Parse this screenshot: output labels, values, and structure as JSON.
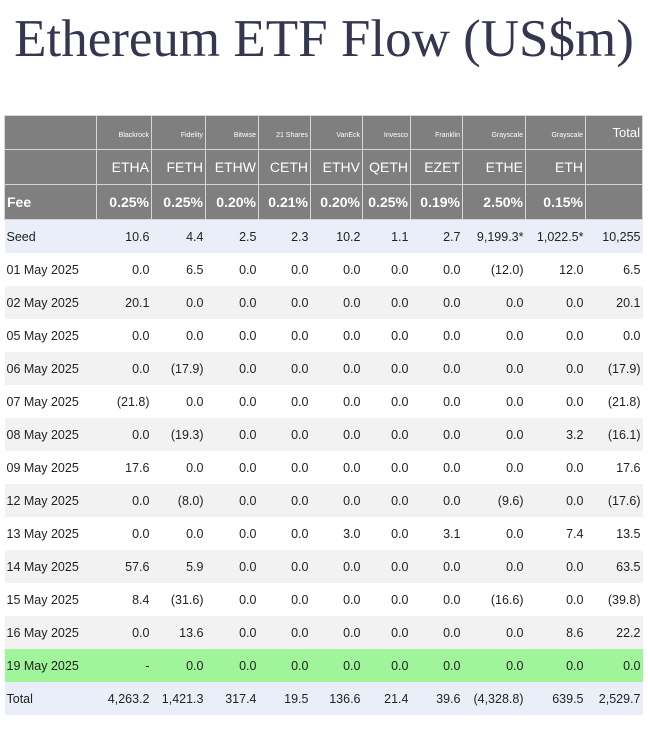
{
  "title": "Ethereum ETF Flow (US$m)",
  "chart_data": {
    "type": "table",
    "issuers": [
      "Blackrock",
      "Fidelity",
      "Bitwise",
      "21 Shares",
      "VanEck",
      "Invesco",
      "Franklin",
      "Grayscale",
      "Grayscale"
    ],
    "tickers": [
      "ETHA",
      "FETH",
      "ETHW",
      "CETH",
      "ETHV",
      "QETH",
      "EZET",
      "ETHE",
      "ETH"
    ],
    "total_header": "Total",
    "fee_label": "Fee",
    "fees": [
      "0.25%",
      "0.25%",
      "0.20%",
      "0.21%",
      "0.20%",
      "0.25%",
      "0.19%",
      "2.50%",
      "0.15%"
    ],
    "rows": [
      {
        "label": "Seed",
        "values": [
          "10.6",
          "4.4",
          "2.5",
          "2.3",
          "10.2",
          "1.1",
          "2.7",
          "9,199.3*",
          "1,022.5*"
        ],
        "total": "10,255"
      },
      {
        "label": "01 May 2025",
        "values": [
          "0.0",
          "6.5",
          "0.0",
          "0.0",
          "0.0",
          "0.0",
          "0.0",
          "(12.0)",
          "12.0"
        ],
        "total": "6.5"
      },
      {
        "label": "02 May 2025",
        "values": [
          "20.1",
          "0.0",
          "0.0",
          "0.0",
          "0.0",
          "0.0",
          "0.0",
          "0.0",
          "0.0"
        ],
        "total": "20.1"
      },
      {
        "label": "05 May 2025",
        "values": [
          "0.0",
          "0.0",
          "0.0",
          "0.0",
          "0.0",
          "0.0",
          "0.0",
          "0.0",
          "0.0"
        ],
        "total": "0.0"
      },
      {
        "label": "06 May 2025",
        "values": [
          "0.0",
          "(17.9)",
          "0.0",
          "0.0",
          "0.0",
          "0.0",
          "0.0",
          "0.0",
          "0.0"
        ],
        "total": "(17.9)"
      },
      {
        "label": "07 May 2025",
        "values": [
          "(21.8)",
          "0.0",
          "0.0",
          "0.0",
          "0.0",
          "0.0",
          "0.0",
          "0.0",
          "0.0"
        ],
        "total": "(21.8)"
      },
      {
        "label": "08 May 2025",
        "values": [
          "0.0",
          "(19.3)",
          "0.0",
          "0.0",
          "0.0",
          "0.0",
          "0.0",
          "0.0",
          "3.2"
        ],
        "total": "(16.1)"
      },
      {
        "label": "09 May 2025",
        "values": [
          "17.6",
          "0.0",
          "0.0",
          "0.0",
          "0.0",
          "0.0",
          "0.0",
          "0.0",
          "0.0"
        ],
        "total": "17.6"
      },
      {
        "label": "12 May 2025",
        "values": [
          "0.0",
          "(8.0)",
          "0.0",
          "0.0",
          "0.0",
          "0.0",
          "0.0",
          "(9.6)",
          "0.0"
        ],
        "total": "(17.6)"
      },
      {
        "label": "13 May 2025",
        "values": [
          "0.0",
          "0.0",
          "0.0",
          "0.0",
          "3.0",
          "0.0",
          "3.1",
          "0.0",
          "7.4"
        ],
        "total": "13.5"
      },
      {
        "label": "14 May 2025",
        "values": [
          "57.6",
          "5.9",
          "0.0",
          "0.0",
          "0.0",
          "0.0",
          "0.0",
          "0.0",
          "0.0"
        ],
        "total": "63.5"
      },
      {
        "label": "15 May 2025",
        "values": [
          "8.4",
          "(31.6)",
          "0.0",
          "0.0",
          "0.0",
          "0.0",
          "0.0",
          "(16.6)",
          "0.0"
        ],
        "total": "(39.8)"
      },
      {
        "label": "16 May 2025",
        "values": [
          "0.0",
          "13.6",
          "0.0",
          "0.0",
          "0.0",
          "0.0",
          "0.0",
          "0.0",
          "8.6"
        ],
        "total": "22.2"
      },
      {
        "label": "19 May 2025",
        "values": [
          "-",
          "0.0",
          "0.0",
          "0.0",
          "0.0",
          "0.0",
          "0.0",
          "0.0",
          "0.0"
        ],
        "total": "0.0",
        "highlight": true
      },
      {
        "label": "Total",
        "values": [
          "4,263.2",
          "1,421.3",
          "317.4",
          "19.5",
          "136.6",
          "21.4",
          "39.6",
          "(4,328.8)",
          "639.5"
        ],
        "total": "2,529.7"
      }
    ],
    "colors": {
      "header_bg": "#7f7f7f",
      "seed_total_bg": "#e9eef8",
      "stripe_bg": "#f2f2f2",
      "highlight_bg": "#a0f59a",
      "negative": "#dd1111",
      "title": "#35364f"
    }
  }
}
